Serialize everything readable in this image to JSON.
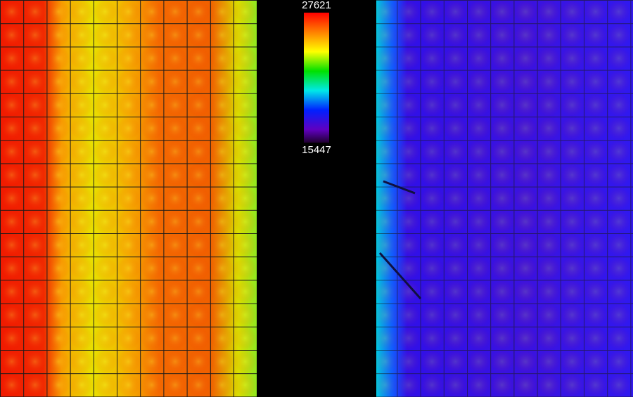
{
  "colorbar": {
    "max": "27621",
    "min": "15447"
  }
}
